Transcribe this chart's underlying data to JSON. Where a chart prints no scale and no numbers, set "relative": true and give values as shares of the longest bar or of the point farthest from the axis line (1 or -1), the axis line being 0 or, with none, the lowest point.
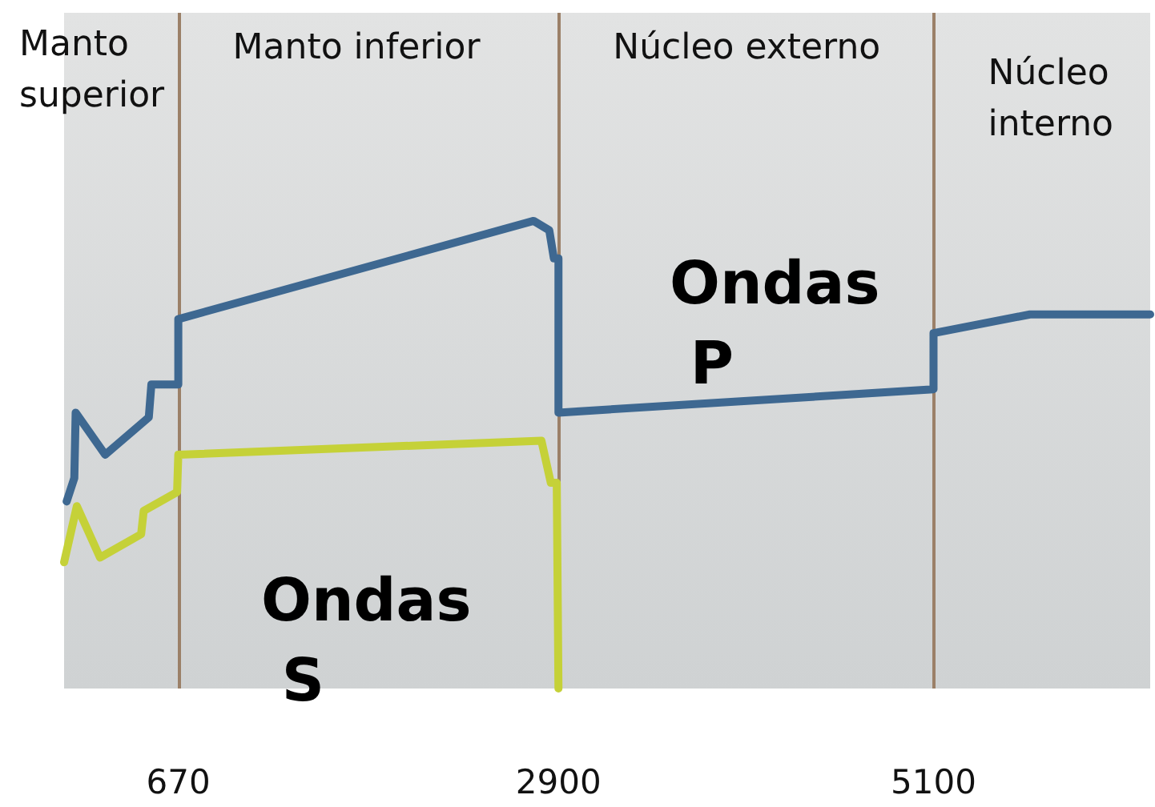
{
  "chart_data": {
    "type": "line",
    "relative": true,
    "xlim": [
      0,
      6371
    ],
    "xticks": [
      670,
      2900,
      5100
    ],
    "grid": "x",
    "marker": "none",
    "line_style": "solid",
    "legend": false,
    "annotations": [
      "Manto superior",
      "Manto inferior",
      "Núcleo externo",
      "Núcleo interno"
    ],
    "series": [
      {
        "name": "Ondas P",
        "color": "#3e6891",
        "x": [
          15,
          60,
          68,
          241,
          497,
          512,
          670,
          670,
          2754,
          2846,
          2873,
          2900,
          2900,
          5100,
          5100,
          5666,
          6371
        ],
        "values": [
          0.4,
          0.45,
          0.59,
          0.5,
          0.58,
          0.65,
          0.65,
          0.79,
          1.0,
          0.98,
          0.92,
          0.92,
          0.59,
          0.64,
          0.76,
          0.8,
          0.8
        ]
      },
      {
        "name": "Ondas S",
        "color": "#c5d138",
        "x": [
          0,
          75,
          211,
          452,
          467,
          663,
          670,
          2800,
          2855,
          2890,
          2900
        ],
        "values": [
          0.27,
          0.39,
          0.28,
          0.33,
          0.38,
          0.42,
          0.5,
          0.53,
          0.44,
          0.44,
          0
        ]
      }
    ]
  }
}
